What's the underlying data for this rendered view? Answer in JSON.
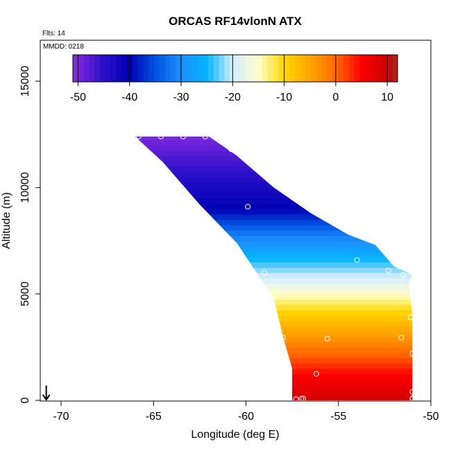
{
  "chart_data": {
    "type": "heatmap",
    "title": "ORCAS RF14vlonN ATX",
    "xlabel": "Longitude (deg E)",
    "ylabel": "Altitude (m)",
    "xlim": [
      -71,
      -50
    ],
    "ylim": [
      0,
      16700
    ],
    "x_ticks": [
      "-70",
      "-65",
      "-60",
      "-55",
      "-50"
    ],
    "x_tick_values": [
      -70,
      -65,
      -60,
      -55,
      -50
    ],
    "y_ticks": [
      "0",
      "5000",
      "10000",
      "15000"
    ],
    "y_tick_values": [
      0,
      5000,
      10000,
      15000
    ],
    "notes": {
      "flights": "Flts: 14",
      "date": "MMDD: 0218"
    },
    "colorbar": {
      "ticks": [
        "-50",
        "-40",
        "-30",
        "-20",
        "-10",
        "0",
        "10"
      ],
      "tick_values": [
        -50,
        -40,
        -30,
        -20,
        -10,
        0,
        10
      ],
      "range": [
        -51,
        12
      ],
      "stops": [
        {
          "v": -51,
          "c": "#8a2be2"
        },
        {
          "v": -45,
          "c": "#2a0fc8"
        },
        {
          "v": -40,
          "c": "#0000b4"
        },
        {
          "v": -35,
          "c": "#0052e0"
        },
        {
          "v": -30,
          "c": "#1e90ff"
        },
        {
          "v": -25,
          "c": "#00b4ff"
        },
        {
          "v": -20,
          "c": "#d4eeff"
        },
        {
          "v": -15,
          "c": "#ffffd0"
        },
        {
          "v": -10,
          "c": "#ffd700"
        },
        {
          "v": -5,
          "c": "#ffa500"
        },
        {
          "v": 0,
          "c": "#ff6a00"
        },
        {
          "v": 5,
          "c": "#ff0000"
        },
        {
          "v": 10,
          "c": "#c80000"
        },
        {
          "v": 12,
          "c": "#a52a2a"
        }
      ]
    },
    "field": {
      "top_edge": [
        [
          -66,
          12400
        ],
        [
          -64,
          12400
        ],
        [
          -63,
          12400
        ],
        [
          -62,
          12400
        ],
        [
          -60.5,
          11500
        ],
        [
          -58.5,
          10000
        ],
        [
          -56.5,
          8800
        ],
        [
          -54.5,
          7800
        ],
        [
          -53,
          7300
        ],
        [
          -52,
          6300
        ],
        [
          -51,
          5900
        ],
        [
          -51.2,
          5500
        ],
        [
          -51,
          4000
        ],
        [
          -51,
          0
        ]
      ],
      "bottom_edge": [
        [
          -66,
          12400
        ],
        [
          -64.5,
          11200
        ],
        [
          -62.5,
          9200
        ],
        [
          -60.5,
          7400
        ],
        [
          -59.5,
          6100
        ],
        [
          -58.5,
          4800
        ],
        [
          -58,
          3000
        ],
        [
          -57.5,
          1500
        ],
        [
          -57.5,
          0
        ]
      ],
      "temperature_profile": [
        {
          "alt": 0,
          "temp": 9
        },
        {
          "alt": 1000,
          "temp": 6
        },
        {
          "alt": 2000,
          "temp": 1
        },
        {
          "alt": 3000,
          "temp": -4
        },
        {
          "alt": 4000,
          "temp": -9
        },
        {
          "alt": 5000,
          "temp": -15
        },
        {
          "alt": 6000,
          "temp": -21
        },
        {
          "alt": 7000,
          "temp": -27
        },
        {
          "alt": 8000,
          "temp": -33
        },
        {
          "alt": 9000,
          "temp": -40
        },
        {
          "alt": 10000,
          "temp": -43
        },
        {
          "alt": 11000,
          "temp": -46
        },
        {
          "alt": 12400,
          "temp": -50
        }
      ]
    },
    "obs_points": [
      {
        "lon": -65.8,
        "alt": 12400
      },
      {
        "lon": -64.6,
        "alt": 12400
      },
      {
        "lon": -63.4,
        "alt": 12400
      },
      {
        "lon": -62.2,
        "alt": 12400
      },
      {
        "lon": -60.8,
        "alt": 11800
      },
      {
        "lon": -59.9,
        "alt": 9100
      },
      {
        "lon": -53.2,
        "alt": 7600
      },
      {
        "lon": -54.0,
        "alt": 6600
      },
      {
        "lon": -59.0,
        "alt": 6000
      },
      {
        "lon": -52.3,
        "alt": 6100
      },
      {
        "lon": -51.5,
        "alt": 5900
      },
      {
        "lon": -51.1,
        "alt": 3900
      },
      {
        "lon": -58.0,
        "alt": 2950
      },
      {
        "lon": -55.6,
        "alt": 2900
      },
      {
        "lon": -51.6,
        "alt": 2950
      },
      {
        "lon": -51.0,
        "alt": 2200
      },
      {
        "lon": -56.2,
        "alt": 1250
      },
      {
        "lon": -51.0,
        "alt": 400
      },
      {
        "lon": -51.0,
        "alt": 100
      },
      {
        "lon": -57.3,
        "alt": 50
      },
      {
        "lon": -57.0,
        "alt": 80
      },
      {
        "lon": -56.9,
        "alt": 80
      },
      {
        "lon": -51.0,
        "alt": 80
      }
    ],
    "arrow_marker": {
      "lon": -70.8,
      "alt_top": 700,
      "alt_bottom": 0
    },
    "colors": {
      "axis": "#000000",
      "point_outline": "#ffffff",
      "background": "#ffffff"
    }
  }
}
